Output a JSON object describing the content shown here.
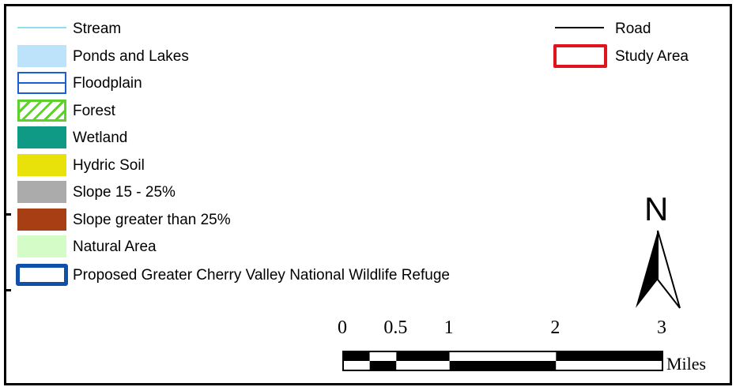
{
  "legend": {
    "items": [
      {
        "key": "stream",
        "label": "Stream",
        "color": "#8de0f0",
        "symbol": "thin-line"
      },
      {
        "key": "ponds",
        "label": "Ponds and Lakes",
        "color": "#bde3fa",
        "symbol": "fill"
      },
      {
        "key": "floodplain",
        "label": "Floodplain",
        "color": "#1a5fd6",
        "symbol": "outline-horizontal-line"
      },
      {
        "key": "forest",
        "label": "Forest",
        "color": "#5fd12c",
        "symbol": "diagonal-hatch"
      },
      {
        "key": "wetland",
        "label": "Wetland",
        "color": "#0f9a86",
        "symbol": "fill"
      },
      {
        "key": "hydric",
        "label": "Hydric Soil",
        "color": "#e9e20a",
        "symbol": "fill"
      },
      {
        "key": "slope1525",
        "label": "Slope 15 - 25%",
        "color": "#ababab",
        "symbol": "fill"
      },
      {
        "key": "slope25",
        "label": "Slope greater than 25%",
        "color": "#a83e14",
        "symbol": "fill"
      },
      {
        "key": "natural",
        "label": "Natural Area",
        "color": "#d3fcc6",
        "symbol": "fill"
      },
      {
        "key": "refuge",
        "label": "Proposed Greater Cherry Valley National Wildlife Refuge",
        "color": "#1150a9",
        "symbol": "thick-outline"
      }
    ],
    "road": {
      "label": "Road",
      "color": "#000000"
    },
    "study_area": {
      "label": "Study Area",
      "color": "#e0141c"
    }
  },
  "north_arrow": {
    "letter": "N"
  },
  "scale_bar": {
    "labels": [
      "0",
      "0.5",
      "1",
      "2",
      "3"
    ],
    "stops": [
      0,
      0.5,
      1,
      2,
      3
    ],
    "max": 3,
    "units": "Miles"
  }
}
